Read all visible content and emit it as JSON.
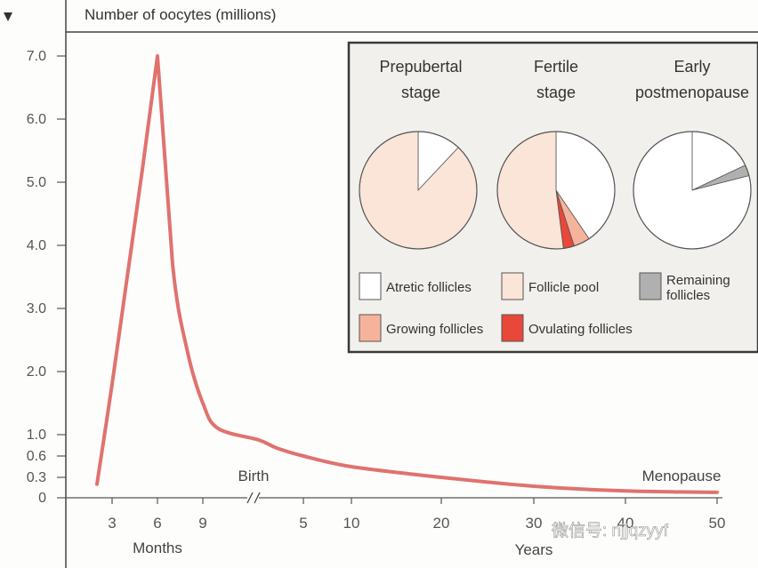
{
  "chart_data": {
    "type": "line",
    "ylabel": "Number of oocytes (millions)",
    "y_ticks": [
      "7.0",
      "6.0",
      "5.0",
      "4.0",
      "3.0",
      "2.0",
      "1.0",
      "0.6",
      "0.3",
      "0"
    ],
    "months_ticks": [
      "3",
      "6",
      "9"
    ],
    "months_label": "Months",
    "years_ticks": [
      "5",
      "10",
      "20",
      "30",
      "40",
      "50"
    ],
    "years_label": "Years",
    "birth_label": "Birth",
    "menopause_label": "Menopause",
    "line_color": "#e0726e",
    "series": [
      {
        "values": [
          {
            "month": 2,
            "y": 0.2
          },
          {
            "month": 3,
            "y": 1.8
          },
          {
            "month": 4,
            "y": 3.5
          },
          {
            "month": 5,
            "y": 5.2
          },
          {
            "month": 6,
            "y": 7.0
          },
          {
            "month": 7,
            "y": 3.7
          },
          {
            "month": 8,
            "y": 2.3
          },
          {
            "month": 9,
            "y": 1.5
          },
          {
            "month": 10,
            "y": 1.1
          },
          {
            "year": 0,
            "y": 0.9
          },
          {
            "year": 2,
            "y": 0.75
          },
          {
            "year": 5,
            "y": 0.6
          },
          {
            "year": 10,
            "y": 0.45
          },
          {
            "year": 20,
            "y": 0.3
          },
          {
            "year": 30,
            "y": 0.17
          },
          {
            "year": 40,
            "y": 0.1
          },
          {
            "year": 50,
            "y": 0.08
          }
        ]
      }
    ]
  },
  "inset": {
    "pies": [
      {
        "title_lines": [
          "Prepubertal",
          "stage"
        ],
        "slices": [
          {
            "key": "atretic",
            "value": 0.12
          },
          {
            "key": "pool",
            "value": 0.88
          }
        ]
      },
      {
        "title_lines": [
          "Fertile",
          "stage"
        ],
        "slices": [
          {
            "key": "atretic",
            "value": 0.405
          },
          {
            "key": "growing",
            "value": 0.045
          },
          {
            "key": "ovulating",
            "value": 0.03
          },
          {
            "key": "pool",
            "value": 0.52
          }
        ]
      },
      {
        "title_lines": [
          "Early",
          "postmenopause"
        ],
        "slices": [
          {
            "key": "atretic",
            "value": 0.18
          },
          {
            "key": "remaining",
            "value": 0.03
          },
          {
            "key": "atretic",
            "value": 0.79
          }
        ]
      }
    ],
    "legend": [
      {
        "key": "atretic",
        "label_lines": [
          "Atretic follicles"
        ],
        "color": "#ffffff"
      },
      {
        "key": "pool",
        "label_lines": [
          "Follicle pool"
        ],
        "color": "#fbe4d8"
      },
      {
        "key": "remaining",
        "label_lines": [
          "Remaining",
          "follicles"
        ],
        "color": "#b0b0b0"
      },
      {
        "key": "growing",
        "label_lines": [
          "Growing follicles"
        ],
        "color": "#f6b39c"
      },
      {
        "key": "ovulating",
        "label_lines": [
          "Ovulating follicles"
        ],
        "color": "#e8473a"
      }
    ]
  },
  "watermark": "微信号: njjqzyyf"
}
